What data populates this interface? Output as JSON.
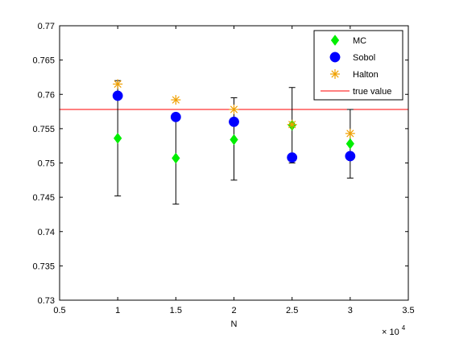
{
  "chart_data": {
    "type": "scatter",
    "xlabel": "N",
    "x_multiplier_label": {
      "base": "× 10",
      "exponent": "4"
    },
    "xlim": [
      0.5,
      3.5
    ],
    "ylim": [
      0.73,
      0.77
    ],
    "xticks": [
      "0.5",
      "1",
      "1.5",
      "2",
      "2.5",
      "3",
      "3.5"
    ],
    "yticks": [
      "0.73",
      "0.735",
      "0.74",
      "0.745",
      "0.75",
      "0.755",
      "0.76",
      "0.765",
      "0.77"
    ],
    "grid": false,
    "legend_position": "top-right",
    "true_value": 0.7578,
    "error_bars": {
      "x": [
        1,
        1.5,
        2,
        2.5,
        3
      ],
      "low": [
        0.7452,
        0.744,
        0.7475,
        0.75,
        0.7478
      ],
      "high": [
        0.762,
        0.7568,
        0.7595,
        0.761,
        0.7578
      ]
    },
    "series": [
      {
        "name": "MC",
        "marker": "diamond",
        "color": "#00ee00",
        "x": [
          1,
          1.5,
          2,
          2.5,
          3
        ],
        "y": [
          0.7536,
          0.7507,
          0.7534,
          0.7555,
          0.7528
        ]
      },
      {
        "name": "Sobol",
        "marker": "circle",
        "color": "#0000ff",
        "x": [
          1,
          1.5,
          2,
          2.5,
          3
        ],
        "y": [
          0.7598,
          0.7567,
          0.756,
          0.7508,
          0.751
        ]
      },
      {
        "name": "Halton",
        "marker": "asterisk",
        "color": "#f0a000",
        "x": [
          1,
          1.5,
          2,
          2.5,
          3
        ],
        "y": [
          0.7615,
          0.7592,
          0.7578,
          0.7556,
          0.7543
        ]
      }
    ],
    "reference_line": {
      "name": "true value",
      "color": "#ff0000"
    }
  }
}
